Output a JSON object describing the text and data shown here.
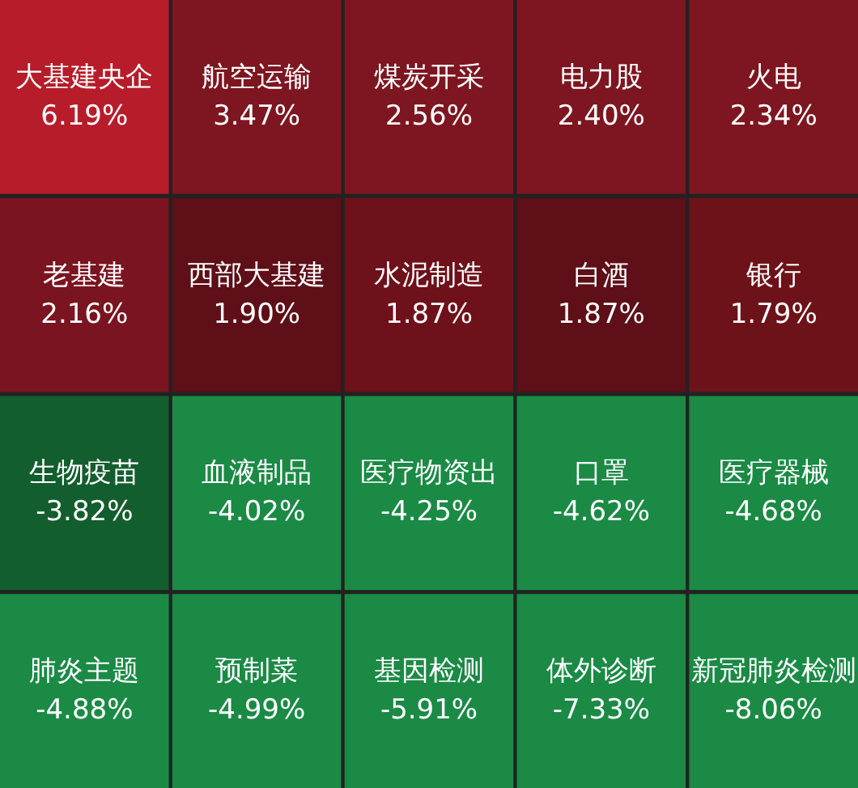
{
  "chart_data": {
    "type": "other",
    "categories": [
      "大基建央企",
      "航空运输",
      "煤炭开采",
      "电力股",
      "火电",
      "老基建",
      "西部大基建",
      "水泥制造",
      "白酒",
      "银行",
      "生物疫苗",
      "血液制品",
      "医疗物资出",
      "口罩",
      "医疗器械",
      "肺炎主题",
      "预制菜",
      "基因检测",
      "体外诊断",
      "新冠肺炎检测"
    ],
    "values": [
      6.19,
      3.47,
      2.56,
      2.4,
      2.34,
      2.16,
      1.9,
      1.87,
      1.87,
      1.79,
      -3.82,
      -4.02,
      -4.25,
      -4.62,
      -4.68,
      -4.88,
      -4.99,
      -5.91,
      -7.33,
      -8.06
    ],
    "value_labels": [
      "6.19%",
      "3.47%",
      "2.56%",
      "2.40%",
      "2.34%",
      "2.16%",
      "1.90%",
      "1.87%",
      "1.87%",
      "1.79%",
      "-3.82%",
      "-4.02%",
      "-4.25%",
      "-4.62%",
      "-4.68%",
      "-4.88%",
      "-4.99%",
      "-5.91%",
      "-7.33%",
      "-8.06%"
    ],
    "colors": [
      "#b71c2a",
      "#7d1620",
      "#7d1620",
      "#7d1620",
      "#7d1620",
      "#7a1420",
      "#5e0f17",
      "#6e111a",
      "#5e0f17",
      "#6e1219",
      "#135e2e",
      "#1a8a45",
      "#1a8a45",
      "#1a8a45",
      "#1a8a45",
      "#1a8a45",
      "#1a8a45",
      "#1a8a45",
      "#1a8a45",
      "#1a8a45"
    ]
  }
}
